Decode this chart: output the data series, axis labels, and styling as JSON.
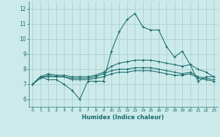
{
  "xlabel": "Humidex (Indice chaleur)",
  "background_color": "#cceaea",
  "grid_color": "#aacece",
  "line_color": "#1a6b6b",
  "xlim": [
    -0.5,
    23.5
  ],
  "ylim": [
    5.5,
    12.5
  ],
  "xticks": [
    0,
    1,
    2,
    3,
    4,
    5,
    6,
    7,
    8,
    9,
    10,
    11,
    12,
    13,
    14,
    15,
    16,
    17,
    18,
    19,
    20,
    21,
    22,
    23
  ],
  "yticks": [
    6,
    7,
    8,
    9,
    10,
    11,
    12
  ],
  "series": [
    [
      7.0,
      7.5,
      7.3,
      7.3,
      7.0,
      6.6,
      6.0,
      7.2,
      7.2,
      7.2,
      9.2,
      10.5,
      11.3,
      11.7,
      10.8,
      10.6,
      10.6,
      9.5,
      8.8,
      9.2,
      8.3,
      7.2,
      7.5,
      7.5
    ],
    [
      7.0,
      7.5,
      7.7,
      7.6,
      7.6,
      7.5,
      7.5,
      7.5,
      7.6,
      7.8,
      8.2,
      8.4,
      8.5,
      8.6,
      8.6,
      8.6,
      8.5,
      8.4,
      8.3,
      8.2,
      8.3,
      8.0,
      7.8,
      7.5
    ],
    [
      7.0,
      7.4,
      7.6,
      7.5,
      7.5,
      7.4,
      7.4,
      7.4,
      7.5,
      7.7,
      7.9,
      8.0,
      8.0,
      8.1,
      8.1,
      8.1,
      8.0,
      7.9,
      7.8,
      7.7,
      7.8,
      7.5,
      7.4,
      7.3
    ],
    [
      7.0,
      7.5,
      7.5,
      7.5,
      7.5,
      7.3,
      7.3,
      7.3,
      7.4,
      7.5,
      7.7,
      7.8,
      7.8,
      7.9,
      7.9,
      7.9,
      7.8,
      7.7,
      7.6,
      7.6,
      7.7,
      7.4,
      7.3,
      7.2
    ]
  ]
}
